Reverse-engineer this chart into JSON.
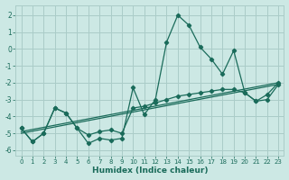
{
  "xlabel": "Humidex (Indice chaleur)",
  "background_color": "#cce8e4",
  "grid_color": "#aaccc8",
  "line_color": "#1a6b5a",
  "xlim": [
    -0.5,
    23.5
  ],
  "ylim": [
    -6.3,
    2.6
  ],
  "yticks": [
    -6,
    -5,
    -4,
    -3,
    -2,
    -1,
    0,
    1,
    2
  ],
  "xticks": [
    0,
    1,
    2,
    3,
    4,
    5,
    6,
    7,
    8,
    9,
    10,
    11,
    12,
    13,
    14,
    15,
    16,
    17,
    18,
    19,
    20,
    21,
    22,
    23
  ],
  "line1_x": [
    0,
    1,
    2,
    3,
    4,
    5,
    6,
    7,
    8,
    9,
    10,
    11,
    12,
    13,
    14,
    15,
    16,
    17,
    18,
    19,
    20,
    21,
    22,
    23
  ],
  "line1_y": [
    -4.7,
    -5.5,
    -5.0,
    -3.5,
    -3.8,
    -4.7,
    -5.6,
    -5.3,
    -5.4,
    -5.3,
    -2.3,
    -3.9,
    -3.0,
    0.4,
    2.0,
    1.4,
    0.1,
    -0.6,
    -1.5,
    -0.1,
    -2.6,
    -3.1,
    -3.0,
    -2.1
  ],
  "line2_x": [
    0,
    1,
    2,
    3,
    4,
    5,
    6,
    7,
    8,
    9,
    10,
    11,
    12,
    13,
    14,
    15,
    16,
    17,
    18,
    19,
    20,
    21,
    22,
    23
  ],
  "line2_y": [
    -4.7,
    -5.5,
    -5.0,
    -3.5,
    -3.8,
    -4.7,
    -5.1,
    -4.9,
    -4.8,
    -5.0,
    -3.5,
    -3.4,
    -3.2,
    -3.0,
    -2.8,
    -2.7,
    -2.6,
    -2.5,
    -2.4,
    -2.4,
    -2.6,
    -3.1,
    -2.7,
    -2.0
  ],
  "line3_x": [
    0,
    23
  ],
  "line3_y": [
    -4.9,
    -2.0
  ],
  "line4_x": [
    0,
    23
  ],
  "line4_y": [
    -5.0,
    -2.1
  ]
}
